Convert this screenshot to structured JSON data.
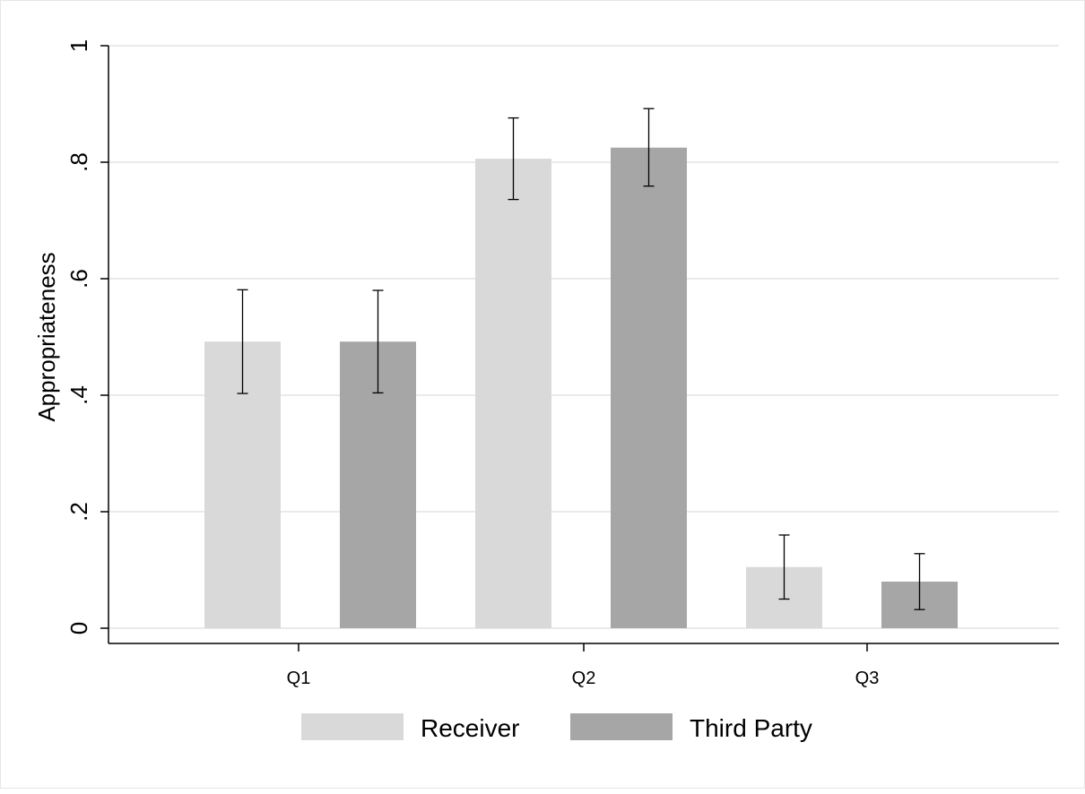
{
  "chart_data": {
    "type": "bar",
    "title": "",
    "xlabel": "",
    "ylabel": "Appropriateness",
    "ylim": [
      0,
      1
    ],
    "yticks": [
      0,
      0.2,
      0.4,
      0.6,
      0.8,
      1
    ],
    "ytick_labels": [
      "0",
      ".2",
      ".4",
      ".6",
      ".8",
      "1"
    ],
    "categories": [
      "Q1",
      "Q2",
      "Q3"
    ],
    "grid": true,
    "legend_position": "bottom",
    "series": [
      {
        "name": "Receiver",
        "color": "#d9d9d9",
        "values": [
          0.492,
          0.806,
          0.105
        ],
        "ci_low": [
          0.403,
          0.736,
          0.05
        ],
        "ci_high": [
          0.581,
          0.876,
          0.16
        ]
      },
      {
        "name": "Third Party",
        "color": "#a6a6a6",
        "values": [
          0.492,
          0.825,
          0.08
        ],
        "ci_low": [
          0.404,
          0.759,
          0.032
        ],
        "ci_high": [
          0.58,
          0.892,
          0.128
        ]
      }
    ]
  }
}
